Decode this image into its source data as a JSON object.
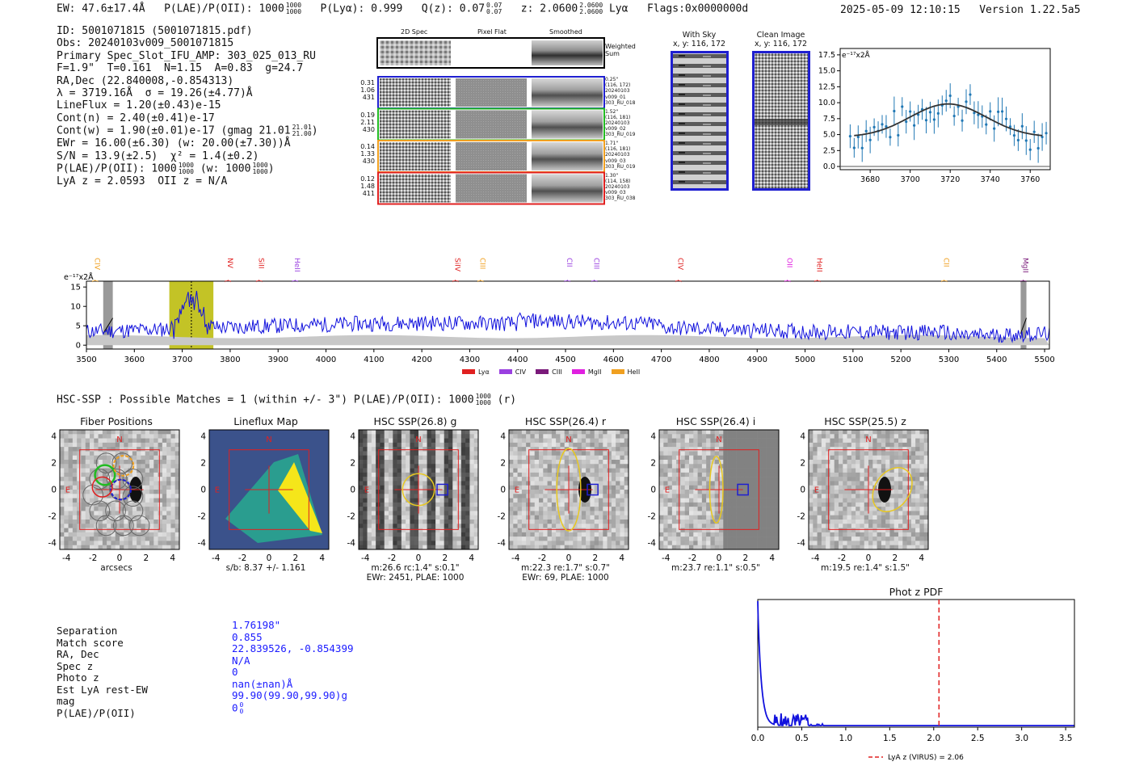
{
  "header": {
    "ew": "EW: 47.6±17.4Å",
    "plae_label": "P(LAE)/P(OII): 1000",
    "plae_hi": "1000",
    "plae_lo": "1000",
    "plya": "P(Lyα): 0.999",
    "qz_label": "Q(z): 0.07",
    "qz_hi": "0.07",
    "qz_lo": "0.07",
    "z_label": "z: 2.0600",
    "z_hi": "2.0600",
    "z_lo": "2.0600",
    "lya": "Lyα",
    "flags": "Flags:0x0000000d",
    "timestamp": "2025-05-09 12:10:15",
    "version": "Version 1.22.5a5"
  },
  "info": {
    "lines": [
      "ID: 5001071815 (5001071815.pdf)",
      "Obs: 20240103v009_5001071815",
      "Primary Spec_Slot_IFU_AMP: 303_025_013_RU",
      "F=1.9\"  T=0.161  N=1.15  A=0.83  g=24.7",
      "RA,Dec (22.840008,-0.854313)",
      "λ = 3719.16Å  σ = 19.26(±4.77)Å",
      "LineFlux = 1.20(±0.43)e-15",
      "Cont(n) = 2.40(±0.41)e-17",
      "Cont(w) = 1.90(±0.01)e-17 (gmag 21.01",
      "EWr = 16.00(±6.30) (w: 20.00(±7.30))Å",
      "S/N = 13.9(±2.5)  χ² = 1.4(±0.2)",
      "P(LAE)/P(OII): 1000",
      "LyA z = 2.0593  OII z = N/A"
    ],
    "gmag_hi": "21.01",
    "gmag_lo": "21.00",
    "plae_hi": "1000",
    "plae_lo": "1000",
    "plae_w": "(w: 1000",
    "plae_w_hi": "1000",
    "plae_w_lo": "1000",
    "plae_w_close": ")"
  },
  "cutouts": {
    "col_labels": [
      "2D Spec",
      "Pixel Flat",
      "Smoothed"
    ],
    "weighted_sum": "Weighted Sum",
    "rows": [
      {
        "left": [
          "0.31",
          "1.06",
          "431"
        ],
        "right": [
          "0.25\"",
          "(116, 172)",
          "20240103",
          "v009_01",
          "303_RU_018"
        ],
        "color": "#1f1fd0"
      },
      {
        "left": [
          "0.19",
          "2.11",
          "430"
        ],
        "right": [
          "1.52\"",
          "(116, 181)",
          "20240103",
          "v009_02",
          "303_RU_019"
        ],
        "color": "#22bb22"
      },
      {
        "left": [
          "0.14",
          "1.33",
          "430"
        ],
        "right": [
          "1.71\"",
          "(116, 181)",
          "20240103",
          "v009_03",
          "303_RU_019"
        ],
        "color": "#f0a020"
      },
      {
        "left": [
          "0.12",
          "1.48",
          "411"
        ],
        "right": [
          "1.30\"",
          "(114, 158)",
          "20240103",
          "v009_03",
          "303_RU_038"
        ],
        "color": "#e02020"
      }
    ],
    "with_sky_title": "With Sky",
    "with_sky_xy": "x, y: 116, 172",
    "clean_title": "Clean Image",
    "clean_xy": "x, y: 116, 172"
  },
  "fit_plot": {
    "ylabel": "e⁻¹⁷x2Å",
    "xticks": [
      3680,
      3700,
      3720,
      3740,
      3760
    ],
    "yticks": [
      0.0,
      2.5,
      5.0,
      7.5,
      10.0,
      12.5,
      15.0,
      17.5
    ],
    "xlim": [
      3665,
      3770
    ],
    "ylim": [
      -0.5,
      18.5
    ]
  },
  "spectrum": {
    "ylabel": "e⁻¹⁷x2Å",
    "xlim": [
      3500,
      5510
    ],
    "ylim": [
      -1,
      16.5
    ],
    "xticks": [
      3500,
      3600,
      3700,
      3800,
      3900,
      4000,
      4100,
      4200,
      4300,
      4400,
      4500,
      4600,
      4700,
      4800,
      4900,
      5000,
      5100,
      5200,
      5300,
      5400,
      5500
    ],
    "yticks": [
      0,
      5,
      10,
      15
    ],
    "lines": [
      {
        "label": "CIV",
        "x": 3518,
        "color": "#f0a020"
      },
      {
        "label": "NV",
        "x": 3795,
        "color": "#e02020"
      },
      {
        "label": "SiII",
        "x": 3860,
        "color": "#e02020"
      },
      {
        "label": "HeII",
        "x": 3935,
        "color": "#9a40e0"
      },
      {
        "label": "SiIV",
        "x": 4270,
        "color": "#e02020"
      },
      {
        "label": "CIII",
        "x": 4322,
        "color": "#f0a020"
      },
      {
        "label": "CII",
        "x": 4503,
        "color": "#9a40e0"
      },
      {
        "label": "CIII",
        "x": 4560,
        "color": "#9a40e0"
      },
      {
        "label": "CIV",
        "x": 4735,
        "color": "#e02020"
      },
      {
        "label": "OII",
        "x": 4963,
        "color": "#e020e0"
      },
      {
        "label": "HeII",
        "x": 5025,
        "color": "#e02020"
      },
      {
        "label": "CII",
        "x": 5290,
        "color": "#f0a020"
      },
      {
        "label": "MgII",
        "x": 5455,
        "color": "#7a1a7a"
      }
    ],
    "legend": [
      {
        "label": "Lyα",
        "color": "#e02020"
      },
      {
        "label": "CIV",
        "color": "#9a40e0"
      },
      {
        "label": "CIII",
        "color": "#7a1a7a"
      },
      {
        "label": "MgII",
        "color": "#e020e0"
      },
      {
        "label": "HeII",
        "color": "#f0a020"
      }
    ]
  },
  "hsc": {
    "heading": "HSC-SSP : Possible Matches = 1 (within +/- 3\")  P(LAE)/P(OII): 1000",
    "heading_hi": "1000",
    "heading_lo": "1000",
    "heading_tail": "(r)",
    "panels": [
      {
        "title": "Fiber Positions",
        "cap1": "arcsecs",
        "cap2": ""
      },
      {
        "title": "Lineflux Map",
        "cap1": "s/b: 8.37 +/- 1.161",
        "cap2": ""
      },
      {
        "title": "HSC SSP(26.8) g",
        "cap1": "m:26.6 rc:1.4\"  s:0.1\"",
        "cap2": "EWr: 2451, PLAE: 1000"
      },
      {
        "title": "HSC SSP(26.4) r",
        "cap1": "m:22.3  re:1.7\"  s:0.7\"",
        "cap2": "EWr: 69, PLAE: 1000"
      },
      {
        "title": "HSC SSP(26.4) i",
        "cap1": "m:23.7  re:1.1\"  s:0.5\"",
        "cap2": ""
      },
      {
        "title": "HSC SSP(25.5) z",
        "cap1": "m:19.5  re:1.4\"  s:1.5\"",
        "cap2": ""
      }
    ],
    "axis_ticks": [
      "-4",
      "-2",
      "0",
      "2",
      "4"
    ],
    "north": "N",
    "east": "E"
  },
  "match": {
    "labels": [
      "Separation",
      "Match score",
      "RA, Dec",
      "Spec z",
      "Photo z",
      "Est LyA rest-EW",
      "mag",
      "P(LAE)/P(OII)"
    ],
    "values": [
      "1.76198\"",
      "0.855",
      "22.839526, -0.854399",
      "N/A",
      "0",
      "nan(±nan)Å",
      "99.90(99.90,99.90)g",
      "0"
    ],
    "plae_hi": "0",
    "plae_lo": "0"
  },
  "photz": {
    "title": "Phot z PDF",
    "xticks": [
      "0.0",
      "0.5",
      "1.0",
      "1.5",
      "2.0",
      "2.5",
      "3.0",
      "3.5"
    ],
    "xlim": [
      0,
      3.6
    ],
    "vline": 2.06,
    "legend": "LyA z (VIRUS) = 2.06"
  }
}
